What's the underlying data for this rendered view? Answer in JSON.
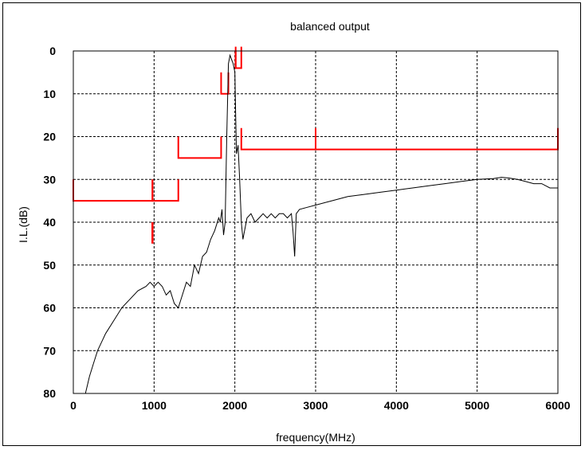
{
  "chart_data": {
    "type": "line",
    "title": "balanced output",
    "xlabel": "frequency(MHz)",
    "ylabel": "I.L.(dB)",
    "xlim": [
      0,
      6000
    ],
    "ylim": [
      0,
      80
    ],
    "y_inverted": true,
    "grid": true,
    "x_ticks": [
      0,
      1000,
      2000,
      3000,
      4000,
      5000,
      6000
    ],
    "y_ticks": [
      0,
      10,
      20,
      30,
      40,
      50,
      60,
      70,
      80
    ],
    "colors": {
      "measured": "#000000",
      "spec": "#ff0000",
      "grid": "#000000"
    },
    "series": [
      {
        "style": "measured",
        "x": [
          150,
          200,
          250,
          300,
          400,
          500,
          600,
          700,
          800,
          900,
          950,
          1000,
          1050,
          1100,
          1150,
          1200,
          1250,
          1300,
          1350,
          1400,
          1450,
          1500,
          1550,
          1600,
          1650,
          1700,
          1750,
          1800,
          1820,
          1840,
          1860,
          1880,
          1900,
          1920,
          1940,
          1960,
          1980,
          2000,
          2010,
          2020,
          2040,
          2060,
          2080,
          2100,
          2150,
          2200,
          2250,
          2300,
          2350,
          2400,
          2450,
          2500,
          2550,
          2600,
          2650,
          2700,
          2720,
          2740,
          2760,
          2800,
          2900,
          3000,
          3200,
          3400,
          3600,
          3800,
          4000,
          4200,
          4400,
          4600,
          4800,
          5000,
          5200,
          5300,
          5400,
          5500,
          5600,
          5700,
          5800,
          5900,
          6000
        ],
        "y": [
          80,
          76,
          73,
          70,
          66,
          63,
          60,
          58,
          56,
          55,
          54,
          55,
          54,
          55,
          57,
          56,
          59,
          60,
          57,
          54,
          55,
          50,
          52,
          48,
          47,
          44,
          42,
          39,
          40,
          37,
          43,
          40,
          20,
          3,
          1,
          2,
          3,
          5,
          15,
          24,
          22,
          30,
          40,
          44,
          39,
          38,
          40,
          39,
          38,
          39,
          38,
          39,
          38,
          38,
          39,
          38,
          42,
          48,
          38,
          37,
          36.5,
          36,
          35,
          34,
          33.5,
          33,
          32.5,
          32,
          31.5,
          31,
          30.5,
          30,
          29.8,
          29.5,
          29.7,
          30,
          30.5,
          31,
          31,
          32,
          32
        ]
      }
    ],
    "spec_limits": [
      {
        "x": [
          0,
          980
        ],
        "y": 35
      },
      {
        "x": [
          980,
          1300
        ],
        "y": 35
      },
      {
        "x": [
          1300,
          1830
        ],
        "y": 25
      },
      {
        "x": [
          1830,
          1920
        ],
        "y": 10
      },
      {
        "x": [
          2010,
          2080
        ],
        "y": 4
      },
      {
        "x": [
          2080,
          6000
        ],
        "y": 23
      }
    ]
  }
}
